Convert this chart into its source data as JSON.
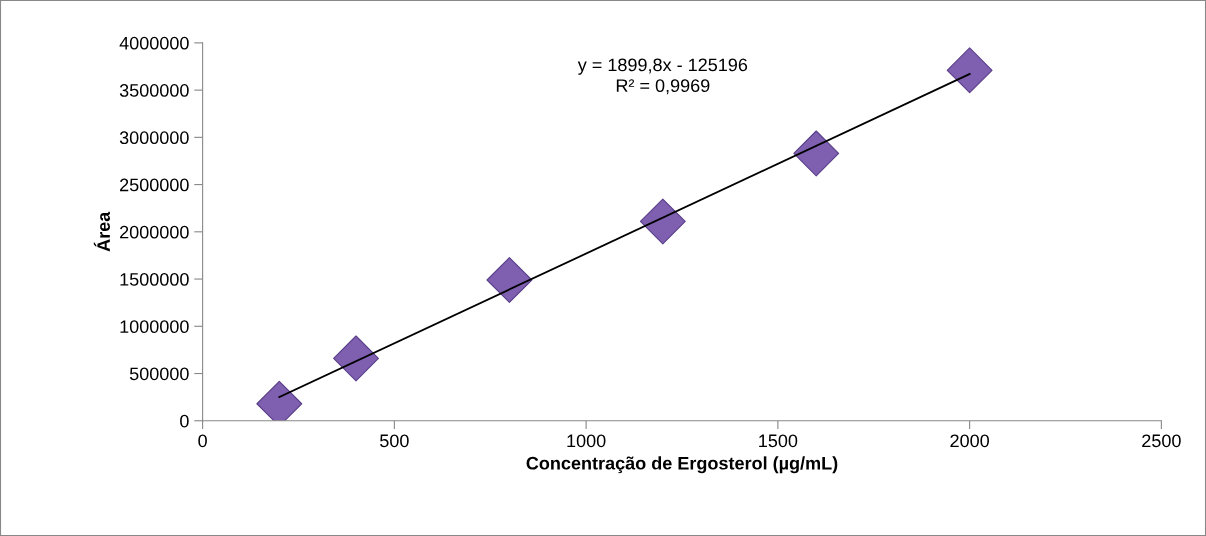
{
  "chart_data": {
    "type": "scatter",
    "xlabel": "Concentração de Ergosterol (µg/mL)",
    "ylabel": "Área",
    "annotations": [
      "y = 1899,8x - 125196\nR² = 0,9969"
    ],
    "marker": "diamond",
    "grid": false,
    "legend": false,
    "xlim": [
      0,
      2500
    ],
    "xticks": [
      0,
      500,
      1000,
      1500,
      2000,
      2500
    ],
    "ylim": [
      0,
      4000000
    ],
    "yticks": [
      0,
      500000,
      1000000,
      1500000,
      2000000,
      2500000,
      3000000,
      3500000,
      4000000
    ],
    "series": [
      {
        "color": "#7f5fb0",
        "x": [
          200,
          400,
          800,
          1200,
          1600,
          2000
        ],
        "values": [
          180000,
          660000,
          1490000,
          2110000,
          2830000,
          3710000
        ]
      },
      {
        "type": "line",
        "color": "#000000",
        "x": [
          200,
          2000
        ],
        "values": [
          250000,
          3670000
        ],
        "marker": "none"
      }
    ]
  }
}
